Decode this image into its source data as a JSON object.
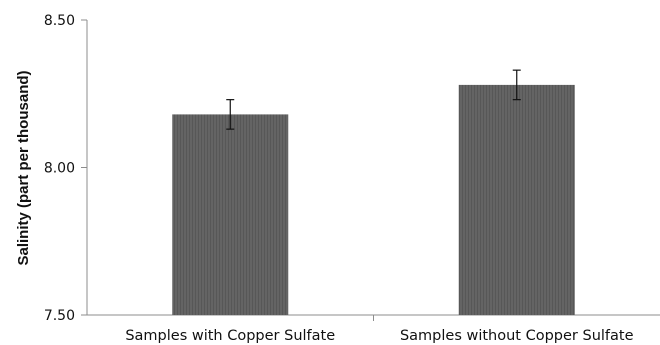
{
  "chart_data": {
    "type": "bar",
    "title": "",
    "xlabel": "",
    "ylabel": "Salinity (part per thousand)",
    "categories": [
      "Samples with Copper Sulfate",
      "Samples without Copper Sulfate"
    ],
    "values": [
      8.18,
      8.28
    ],
    "error": [
      0.05,
      0.05
    ],
    "ylim": [
      7.5,
      8.5
    ],
    "yticks": [
      7.5,
      8.0,
      8.5
    ],
    "ytick_labels": [
      "7.50",
      "8.00",
      "8.50"
    ],
    "grid": false,
    "legend": "none",
    "colors": {
      "bar": "#606060",
      "axis": "#8c8c8c",
      "error_bar": "#111111"
    }
  }
}
